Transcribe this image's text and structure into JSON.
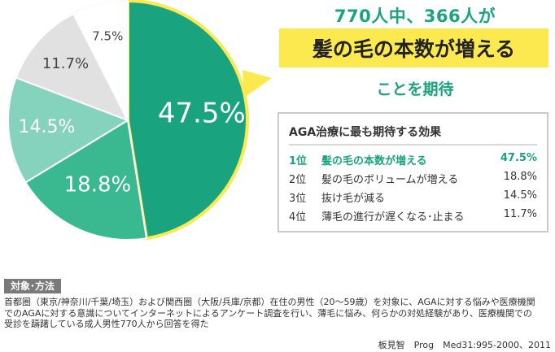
{
  "chart_data": {
    "type": "pie",
    "start_angle_deg": 0,
    "direction": "clockwise",
    "slices": [
      {
        "label": "47.5%",
        "value": 47.5,
        "color": "#1aa37f",
        "label_color": "#ffffff"
      },
      {
        "label": "18.8%",
        "value": 18.8,
        "color": "#3ab890",
        "label_color": "#ffffff"
      },
      {
        "label": "14.5%",
        "value": 14.5,
        "color": "#86d3bd",
        "label_color": "#ffffff"
      },
      {
        "label": "11.7%",
        "value": 11.7,
        "color": "#e1e1e1",
        "label_color": "#444444"
      },
      {
        "label": "7.5%",
        "value": 7.5,
        "color": "#ffffff",
        "label_color": "#444444"
      }
    ],
    "highlight": {
      "slice": 0,
      "outline_color": "#fce94f"
    }
  },
  "headline": {
    "top": "770人中、366人が",
    "box": "髪の毛の本数が増える",
    "bottom": "ことを期待"
  },
  "ranking": {
    "title": "AGA治療に最も期待する効果",
    "rows": [
      {
        "rank": "1位",
        "label": "髪の毛の本数が増える",
        "value": "47.5%"
      },
      {
        "rank": "2位",
        "label": "髪の毛のボリュームが増える",
        "value": "18.8%"
      },
      {
        "rank": "3位",
        "label": "抜け毛が減る",
        "value": "14.5%"
      },
      {
        "rank": "4位",
        "label": "薄毛の進行が遅くなる･止まる",
        "value": "11.7%"
      }
    ]
  },
  "method": {
    "tag": "対象･方法",
    "lines": [
      "首都圏（東京/神奈川/千葉/埼玉）および関西圏（大阪/兵庫/京都）在住の男性（20〜59歳）を対象に、AGAに対する悩みや医療機関",
      "でのAGAに対する意識についてインターネットによるアンケート調査を行い、薄毛に悩み、何らかの対処経験があり、医療機関での",
      "受診を躊躇している成人男性770人から回答を得た"
    ]
  },
  "citation": "板見智　Prog　Med31:995-2000、2011",
  "colors": {
    "accent": "#1aa37f",
    "highlight": "#fce94f"
  }
}
